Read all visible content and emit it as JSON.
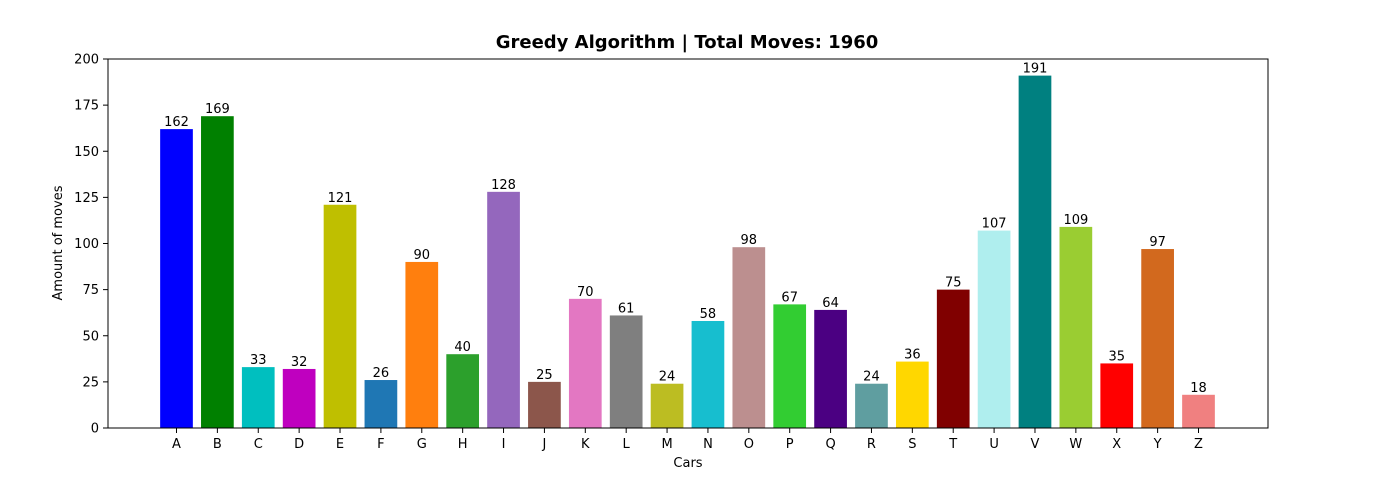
{
  "chart_data": {
    "type": "bar",
    "title": "Greedy Algorithm | Total Moves: 1960",
    "xlabel": "Cars",
    "ylabel": "Amount of moves",
    "ylim": [
      0,
      200
    ],
    "yticks": [
      0,
      25,
      50,
      75,
      100,
      125,
      150,
      175,
      200
    ],
    "grid": false,
    "categories": [
      "A",
      "B",
      "C",
      "D",
      "E",
      "F",
      "G",
      "H",
      "I",
      "J",
      "K",
      "L",
      "M",
      "N",
      "O",
      "P",
      "Q",
      "R",
      "S",
      "T",
      "U",
      "V",
      "W",
      "X",
      "Y",
      "Z"
    ],
    "values": [
      162,
      169,
      33,
      32,
      121,
      26,
      90,
      40,
      128,
      25,
      70,
      61,
      24,
      58,
      98,
      67,
      64,
      24,
      36,
      75,
      107,
      191,
      109,
      35,
      97,
      18
    ],
    "colors": [
      "#0000ff",
      "#008000",
      "#00bfbf",
      "#bf00bf",
      "#bfbf00",
      "#1f77b4",
      "#ff7f0e",
      "#2ca02c",
      "#9467bd",
      "#8c564b",
      "#e377c2",
      "#7f7f7f",
      "#bcbd22",
      "#17becf",
      "#bc8f8f",
      "#32cd32",
      "#4b0082",
      "#5f9ea0",
      "#ffd700",
      "#800000",
      "#afeeee",
      "#008080",
      "#9acd32",
      "#ff0000",
      "#d2691e",
      "#f08080"
    ]
  }
}
